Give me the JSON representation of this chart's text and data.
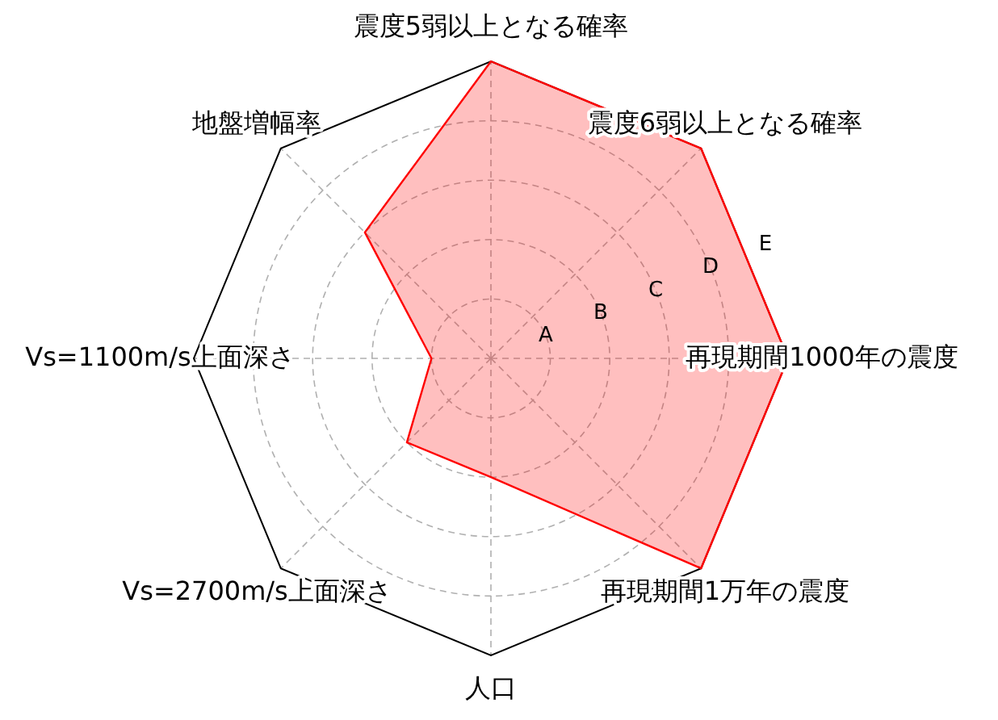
{
  "chart_data": {
    "type": "radar",
    "categories": [
      "震度5弱以上となる確率",
      "震度6弱以上となる確率",
      "再現期間1000年の震度",
      "再現期間1万年の震度",
      "人口",
      "Vs=2700m/s上面深さ",
      "Vs=1100m/s上面深さ",
      "地盤増幅率"
    ],
    "series": [
      {
        "color": "#ff0000",
        "values": [
          5,
          5,
          5,
          5,
          2,
          2,
          1,
          3
        ]
      }
    ],
    "ylim": [
      0,
      5
    ],
    "yticks": [
      {
        "value": 1,
        "label": "A"
      },
      {
        "value": 2,
        "label": "B"
      },
      {
        "value": 3,
        "label": "C"
      },
      {
        "value": 4,
        "label": "D"
      },
      {
        "value": 5,
        "label": "E"
      }
    ],
    "grid": true
  }
}
